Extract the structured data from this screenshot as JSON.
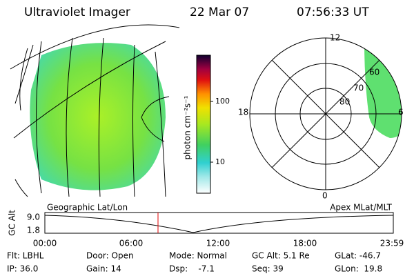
{
  "header": {
    "title": "Ultraviolet Imager",
    "date": "22 Mar 07",
    "time": "07:56:33 UT"
  },
  "colorbar": {
    "label": "photon cm⁻²s⁻¹",
    "ticks": [
      "100",
      "10"
    ]
  },
  "polar": {
    "mlt_labels": [
      "12",
      "18",
      "6",
      "0"
    ],
    "mlat_labels": [
      "60",
      "70",
      "80"
    ]
  },
  "timeline": {
    "left_title": "Geographic Lat/Lon",
    "right_title": "Apex MLat/MLT",
    "y_label": "GC Alt",
    "y_ticks": [
      "9.0",
      "1.8"
    ],
    "x_ticks": [
      "00:00",
      "06:00",
      "12:00",
      "18:00",
      "23:59"
    ]
  },
  "footer": {
    "rows": [
      [
        "Flt: LBHL",
        "Door: Open",
        "Mode: Normal",
        "GC Alt: 5.1 Re",
        "GLat: -46.7"
      ],
      [
        "IP: 36.0",
        "Gain: 14",
        "Dsp:    -7.1",
        "Seq: 39",
        "GLon:  19.8"
      ]
    ]
  }
}
